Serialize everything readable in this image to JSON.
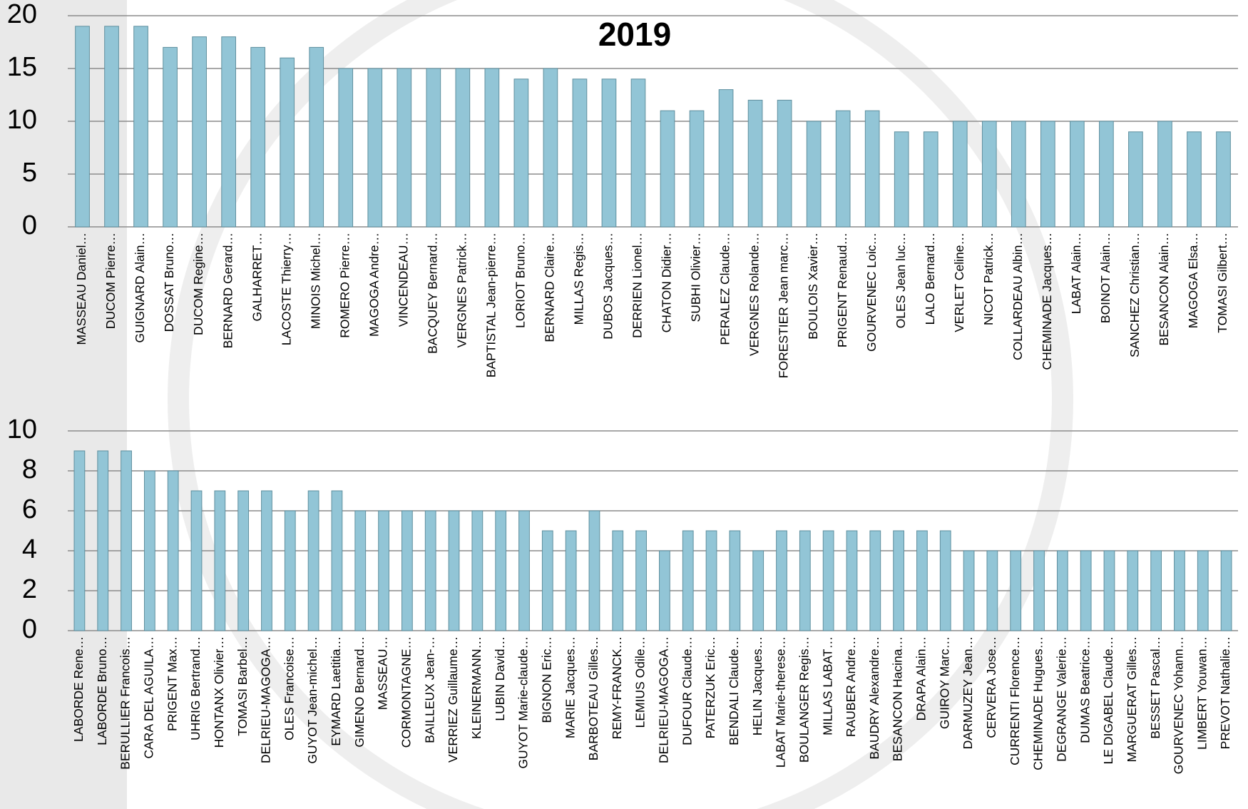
{
  "chart_data": [
    {
      "type": "bar",
      "title": "2019",
      "color": "#92c5d6",
      "grid": true,
      "ylim": [
        0,
        20
      ],
      "yticks": [
        0,
        5,
        10,
        15,
        20
      ],
      "categories": [
        "MASSEAU Daniel…",
        "DUCOM Pierre…",
        "GUIGNARD Alain…",
        "DOSSAT Bruno…",
        "DUCOM Regine…",
        "BERNARD Gerard…",
        "GALHARRET…",
        "LACOSTE Thierry…",
        "MINOIS Michel…",
        "ROMERO Pierre…",
        "MAGOGA Andre…",
        "VINCENDEAU…",
        "BACQUEY Bernard…",
        "VERGNES Patrick…",
        "BAPTISTAL Jean-pierre…",
        "LORIOT Bruno…",
        "BERNARD Claire…",
        "MILLAS Regis…",
        "DUBOS Jacques…",
        "DERRIEN Lionel…",
        "CHATON Didier…",
        "SUBHI Olivier…",
        "PERALEZ Claude…",
        "VERGNES Rolande…",
        "FORESTIER Jean marc…",
        "BOULOIS Xavier…",
        "PRIGENT Renaud…",
        "GOURVENEC Loic…",
        "OLES Jean luc…",
        "LALO Bernard…",
        "VERLET Celine…",
        "NICOT Patrick…",
        "COLLARDEAU Albin…",
        "CHEMINADE Jacques…",
        "LABAT Alain…",
        "BOINOT Alain…",
        "SANCHEZ Christian…",
        "BESANCON Alain…",
        "MAGOGA Elsa…",
        "TOMASI Gilbert…"
      ],
      "values": [
        19,
        19,
        19,
        17,
        18,
        18,
        17,
        16,
        17,
        15,
        15,
        15,
        15,
        15,
        15,
        14,
        15,
        14,
        14,
        14,
        11,
        11,
        13,
        12,
        12,
        10,
        11,
        11,
        9,
        9,
        10,
        10,
        10,
        10,
        10,
        10,
        9,
        10,
        9,
        9
      ]
    },
    {
      "type": "bar",
      "color": "#92c5d6",
      "grid": true,
      "ylim": [
        0,
        10
      ],
      "yticks": [
        0,
        2,
        4,
        6,
        8,
        10
      ],
      "categories": [
        "LABORDE Rene…",
        "LABORDE Bruno…",
        "BERULLIER Francois…",
        "CARA DEL AGUILA…",
        "PRIGENT Max…",
        "UHRIG Bertrand…",
        "HONTANX Olivier…",
        "TOMASI Barbel…",
        "DELRIEU-MAGOGA…",
        "OLES Francoise…",
        "GUYOT Jean-michel…",
        "EYMARD Laetitia…",
        "GIMENO Bernard…",
        "MASSEAU…",
        "CORMONTAGNE…",
        "BAILLEUX Jean-…",
        "VERRIEZ Guillaume…",
        "KLEINERMANN…",
        "LUBIN David…",
        "GUYOT Marie-claude…",
        "BIGNON Eric…",
        "MARIE Jacques…",
        "BARBOTEAU Gilles…",
        "REMY-FRANCK…",
        "LEMIUS Odile…",
        "DELRIEU-MAGOGA…",
        "DUFOUR Claude…",
        "PATERZUK Eric…",
        "BENDALI Claude…",
        "HELIN Jacques…",
        "LABAT Marie-therese…",
        "BOULANGER Regis…",
        "MILLAS LABAT…",
        "RAUBER Andre…",
        "BAUDRY Alexandre…",
        "BESANCON Hacina…",
        "DRAPA Alain…",
        "GUIROY Marc…",
        "DARMUZEY Jean…",
        "CERVERA Jose…",
        "CURRENTI Florence…",
        "CHEMINADE Hugues…",
        "DEGRANGE Valerie…",
        "DUMAS Beatrice…",
        "LE DIGABEL Claude…",
        "MARGUERAT Gilles…",
        "BESSET Pascal…",
        "GOURVENEC Yohann…",
        "LIMBERT Youwan…",
        "PREVOT Nathalie…"
      ],
      "values": [
        9,
        9,
        9,
        8,
        8,
        7,
        7,
        7,
        7,
        6,
        7,
        7,
        6,
        6,
        6,
        6,
        6,
        6,
        6,
        6,
        5,
        5,
        6,
        5,
        5,
        4,
        5,
        5,
        5,
        4,
        5,
        5,
        5,
        5,
        5,
        5,
        5,
        5,
        4,
        4,
        4,
        4,
        4,
        4,
        4,
        4,
        4,
        4,
        4,
        4
      ]
    }
  ]
}
